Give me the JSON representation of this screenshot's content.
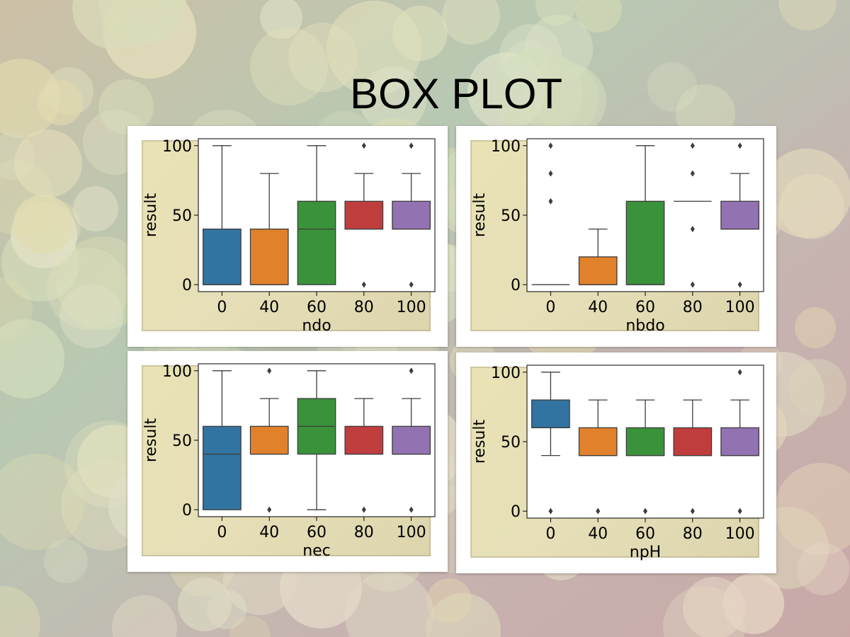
{
  "title": "BOX PLOT",
  "colors": [
    "#3274a1",
    "#e1812c",
    "#3a923a",
    "#c03d3e",
    "#9372b2"
  ],
  "chart_data": [
    {
      "type": "box",
      "xlabel": "ndo",
      "ylabel": "result",
      "categories": [
        "0",
        "40",
        "60",
        "80",
        "100"
      ],
      "yticks": [
        0,
        50,
        100
      ],
      "ylim": [
        -5,
        105
      ],
      "boxes": [
        {
          "q1": 0,
          "median": 0,
          "q3": 40,
          "whisker_low": 0,
          "whisker_high": 100,
          "outliers": []
        },
        {
          "q1": 0,
          "median": 0,
          "q3": 40,
          "whisker_low": 0,
          "whisker_high": 80,
          "outliers": []
        },
        {
          "q1": 0,
          "median": 40,
          "q3": 60,
          "whisker_low": 0,
          "whisker_high": 100,
          "outliers": []
        },
        {
          "q1": 40,
          "median": 40,
          "q3": 60,
          "whisker_low": 40,
          "whisker_high": 80,
          "outliers": [
            0,
            100
          ]
        },
        {
          "q1": 40,
          "median": 40,
          "q3": 60,
          "whisker_low": 40,
          "whisker_high": 80,
          "outliers": [
            0,
            100
          ]
        }
      ]
    },
    {
      "type": "box",
      "xlabel": "nbdo",
      "ylabel": "result",
      "categories": [
        "0",
        "40",
        "60",
        "80",
        "100"
      ],
      "yticks": [
        0,
        50,
        100
      ],
      "ylim": [
        -5,
        105
      ],
      "boxes": [
        {
          "q1": 0,
          "median": 0,
          "q3": 0,
          "whisker_low": 0,
          "whisker_high": 0,
          "outliers": [
            60,
            80,
            100
          ]
        },
        {
          "q1": 0,
          "median": 0,
          "q3": 20,
          "whisker_low": 0,
          "whisker_high": 40,
          "outliers": []
        },
        {
          "q1": 0,
          "median": 0,
          "q3": 60,
          "whisker_low": 0,
          "whisker_high": 100,
          "outliers": []
        },
        {
          "q1": 60,
          "median": 60,
          "q3": 60,
          "whisker_low": 60,
          "whisker_high": 60,
          "outliers": [
            0,
            40,
            80,
            100
          ]
        },
        {
          "q1": 40,
          "median": 40,
          "q3": 60,
          "whisker_low": 40,
          "whisker_high": 80,
          "outliers": [
            0,
            100
          ]
        }
      ]
    },
    {
      "type": "box",
      "xlabel": "nec",
      "ylabel": "result",
      "categories": [
        "0",
        "40",
        "60",
        "80",
        "100"
      ],
      "yticks": [
        0,
        50,
        100
      ],
      "ylim": [
        -5,
        105
      ],
      "boxes": [
        {
          "q1": 0,
          "median": 40,
          "q3": 60,
          "whisker_low": 0,
          "whisker_high": 100,
          "outliers": []
        },
        {
          "q1": 40,
          "median": 40,
          "q3": 60,
          "whisker_low": 40,
          "whisker_high": 80,
          "outliers": [
            0,
            100
          ]
        },
        {
          "q1": 40,
          "median": 60,
          "q3": 80,
          "whisker_low": 0,
          "whisker_high": 100,
          "outliers": []
        },
        {
          "q1": 40,
          "median": 40,
          "q3": 60,
          "whisker_low": 40,
          "whisker_high": 80,
          "outliers": [
            0
          ]
        },
        {
          "q1": 40,
          "median": 40,
          "q3": 60,
          "whisker_low": 40,
          "whisker_high": 80,
          "outliers": [
            0,
            100
          ]
        }
      ]
    },
    {
      "type": "box",
      "xlabel": "npH",
      "ylabel": "result",
      "categories": [
        "0",
        "40",
        "60",
        "80",
        "100"
      ],
      "yticks": [
        0,
        50,
        100
      ],
      "ylim": [
        -5,
        105
      ],
      "boxes": [
        {
          "q1": 60,
          "median": 60,
          "q3": 80,
          "whisker_low": 40,
          "whisker_high": 100,
          "outliers": [
            0
          ]
        },
        {
          "q1": 40,
          "median": 40,
          "q3": 60,
          "whisker_low": 40,
          "whisker_high": 80,
          "outliers": [
            0
          ]
        },
        {
          "q1": 40,
          "median": 40,
          "q3": 60,
          "whisker_low": 40,
          "whisker_high": 80,
          "outliers": [
            0
          ]
        },
        {
          "q1": 40,
          "median": 40,
          "q3": 60,
          "whisker_low": 40,
          "whisker_high": 80,
          "outliers": [
            0
          ]
        },
        {
          "q1": 40,
          "median": 40,
          "q3": 60,
          "whisker_low": 40,
          "whisker_high": 80,
          "outliers": [
            0,
            100
          ]
        }
      ]
    }
  ]
}
